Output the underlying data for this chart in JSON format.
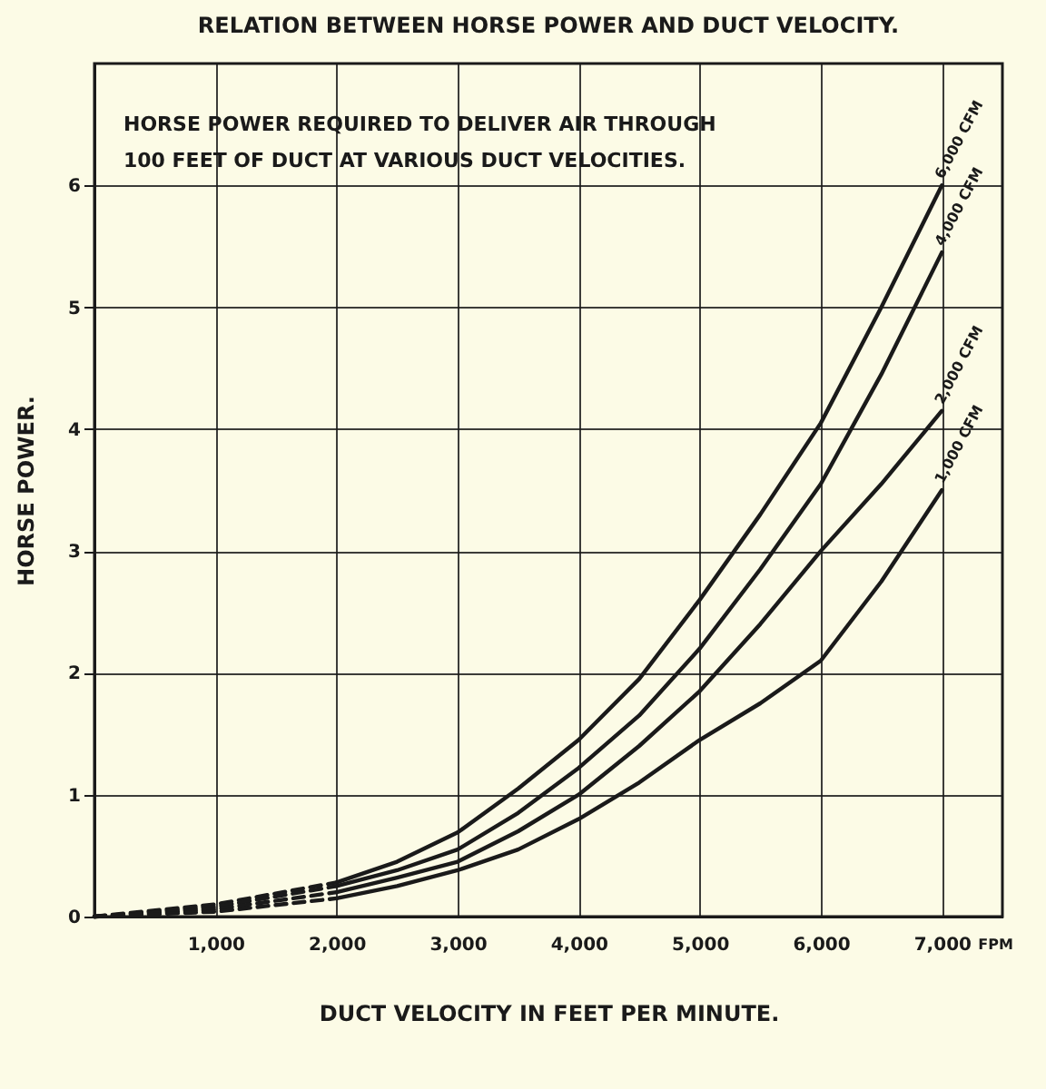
{
  "chart_data": {
    "type": "line",
    "title": "RELATION BETWEEN HORSE POWER AND DUCT VELOCITY.",
    "xlabel": "DUCT VELOCITY IN FEET PER MINUTE.",
    "ylabel": "HORSE POWER.",
    "annotations": [
      "HORSE POWER REQUIRED TO DELIVER AIR THROUGH 100 FEET OF DUCT AT VARIOUS DUCT VELOCITIES.",
      "FPM"
    ],
    "xlim": [
      0,
      7500
    ],
    "ylim": [
      0,
      7
    ],
    "xticks": [
      {
        "value": 1000,
        "label": "1,000"
      },
      {
        "value": 2000,
        "label": "2,000"
      },
      {
        "value": 3000,
        "label": "3,000"
      },
      {
        "value": 4000,
        "label": "4,000"
      },
      {
        "value": 5000,
        "label": "5,000"
      },
      {
        "value": 6000,
        "label": "6,000"
      },
      {
        "value": 7000,
        "label": "7,000"
      }
    ],
    "yticks": [
      0,
      1,
      2,
      3,
      4,
      5,
      6
    ],
    "grid": true,
    "series": [
      {
        "name": "6,000 CFM",
        "color": "#1a1a1a",
        "x": [
          2000,
          2500,
          3000,
          3500,
          4000,
          4500,
          5000,
          5500,
          6000,
          6500,
          7000
        ],
        "values": [
          0.28,
          0.45,
          0.69,
          1.05,
          1.45,
          1.95,
          2.6,
          3.3,
          4.05,
          5.0,
          6.0
        ]
      },
      {
        "name": "4,000 CFM",
        "color": "#1a1a1a",
        "x": [
          2000,
          2500,
          3000,
          3500,
          4000,
          4500,
          5000,
          5500,
          6000,
          6500,
          7000
        ],
        "values": [
          0.25,
          0.38,
          0.55,
          0.85,
          1.22,
          1.65,
          2.2,
          2.85,
          3.55,
          4.45,
          5.45
        ]
      },
      {
        "name": "2,000 CFM",
        "color": "#1a1a1a",
        "x": [
          2000,
          2500,
          3000,
          3500,
          4000,
          4500,
          5000,
          5500,
          6000,
          6500,
          7000
        ],
        "values": [
          0.2,
          0.32,
          0.45,
          0.7,
          1.0,
          1.4,
          1.85,
          2.4,
          3.0,
          3.55,
          4.15
        ]
      },
      {
        "name": "1,000 CFM",
        "color": "#1a1a1a",
        "x": [
          2000,
          2500,
          3000,
          3500,
          4000,
          4500,
          5000,
          5500,
          6000,
          6500,
          7000
        ],
        "values": [
          0.15,
          0.25,
          0.38,
          0.55,
          0.8,
          1.1,
          1.45,
          1.75,
          2.1,
          2.75,
          3.5
        ]
      },
      {
        "color": "#1a1a1a",
        "line_style": "dashed",
        "x": [
          0,
          1000,
          2000
        ],
        "values": [
          0,
          0.1,
          0.28
        ]
      },
      {
        "color": "#1a1a1a",
        "line_style": "dashed",
        "x": [
          0,
          1000,
          2000
        ],
        "values": [
          0,
          0.08,
          0.25
        ]
      },
      {
        "color": "#1a1a1a",
        "line_style": "dashed",
        "x": [
          0,
          1000,
          2000
        ],
        "values": [
          0,
          0.06,
          0.2
        ]
      },
      {
        "color": "#1a1a1a",
        "line_style": "dashed",
        "x": [
          0,
          1000,
          2000
        ],
        "values": [
          0,
          0.04,
          0.15
        ]
      }
    ]
  }
}
